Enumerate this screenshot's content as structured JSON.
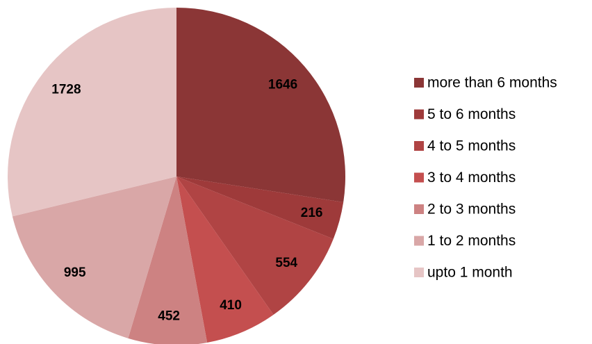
{
  "chart_data": {
    "type": "pie",
    "categories": [
      "more than 6 months",
      "5 to 6 months",
      "4 to 5 months",
      "3 to 4 months",
      "2 to 3 months",
      "1 to 2 months",
      "upto 1 month"
    ],
    "values": [
      1646,
      216,
      554,
      410,
      452,
      995,
      1728
    ],
    "colors": [
      "#8b3636",
      "#9e3a3a",
      "#b04444",
      "#c44f4f",
      "#cd8282",
      "#d9a7a7",
      "#e6c5c5"
    ],
    "legend": "right"
  }
}
